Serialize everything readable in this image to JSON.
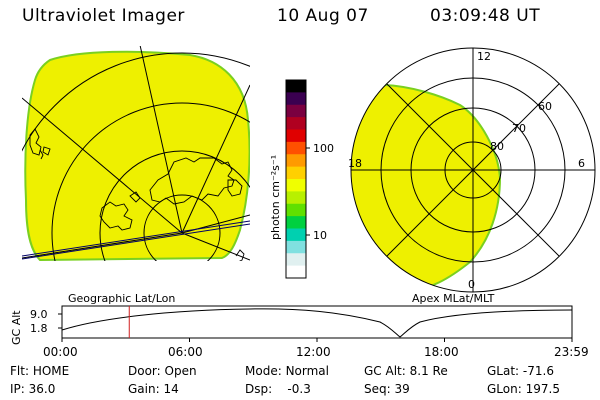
{
  "header": {
    "instrument": "Ultraviolet Imager",
    "date": "10 Aug 07",
    "time": "03:09:48 UT"
  },
  "maps": {
    "left_label": "Geographic Lat/Lon",
    "right_label": "Apex MLat/MLT",
    "right_ticks": {
      "top": "12",
      "bottom": "0",
      "left": "18",
      "right": "6"
    },
    "lat_rings": [
      "60",
      "70",
      "80"
    ]
  },
  "colorbar": {
    "unit": "photon cm⁻²s⁻¹",
    "ticks": [
      "100",
      "10"
    ],
    "scale": "log",
    "colors": [
      "#000000",
      "#3a0050",
      "#7a0040",
      "#b00020",
      "#e00000",
      "#ff5000",
      "#ff9a00",
      "#ffd000",
      "#f0ff00",
      "#b8f000",
      "#60e000",
      "#00d040",
      "#00d0b0",
      "#80e0e0",
      "#e0f0f0",
      "#ffffff"
    ]
  },
  "timeline": {
    "y_label": "GC Alt",
    "y_ticks": [
      "9.0",
      "1.8"
    ],
    "x_ticks": [
      "00:00",
      "06:00",
      "12:00",
      "18:00",
      "23:59"
    ],
    "marker_time_hours": 3.165
  },
  "info": {
    "flt_label": "Flt:",
    "flt_value": "HOME",
    "ip_label": "IP:",
    "ip_value": "36.0",
    "door_label": "Door:",
    "door_value": "Open",
    "gain_label": "Gain:",
    "gain_value": "14",
    "mode_label": "Mode:",
    "mode_value": "Normal",
    "dsp_label": "Dsp:",
    "dsp_value": "-0.3",
    "gcalt_label": "GC Alt:",
    "gcalt_value": "8.1 Re",
    "seq_label": "Seq:",
    "seq_value": "39",
    "glat_label": "GLat:",
    "glat_value": "-71.6",
    "glon_label": "GLon:",
    "glon_value": "197.5"
  },
  "colors": {
    "image_fill": "#eef000",
    "image_edge": "#7ad020",
    "marker": "#d02020"
  }
}
